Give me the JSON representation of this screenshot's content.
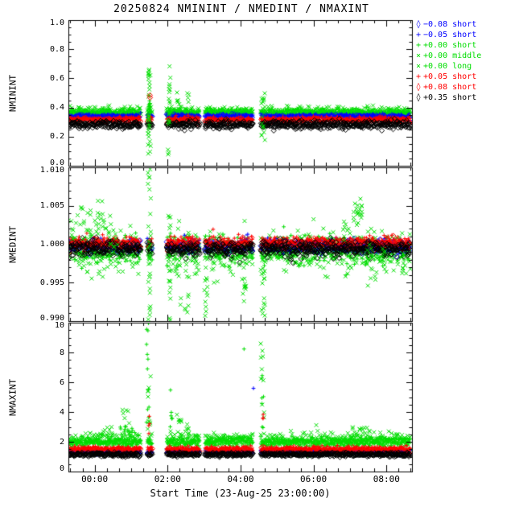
{
  "chart_data": {
    "type": "scatter",
    "title": "20250824 NMININT / NMEDINT / NMAXINT",
    "xlabel": "Start Time (23-Aug-25 23:00:00)",
    "x_range": [
      -0.72,
      8.7
    ],
    "x_ticks": [
      {
        "v": 0,
        "label": "00:00"
      },
      {
        "v": 2,
        "label": "02:00"
      },
      {
        "v": 4,
        "label": "04:00"
      },
      {
        "v": 6,
        "label": "06:00"
      },
      {
        "v": 8,
        "label": "08:00"
      }
    ],
    "x_minor_step": 0.33333,
    "panels": [
      {
        "ylabel": "NMININT",
        "y_range": [
          0.0,
          1.0
        ],
        "y_tick_vals": [
          0.0,
          0.2,
          0.4,
          0.6,
          0.8,
          1.0
        ],
        "y_ticks": [
          "0.0",
          "0.2",
          "0.4",
          "0.6",
          "0.8",
          "1.0"
        ],
        "y_minor": 0.05
      },
      {
        "ylabel": "NMEDINT",
        "y_range": [
          0.99,
          1.01
        ],
        "y_tick_vals": [
          0.99,
          0.995,
          1.0,
          1.005,
          1.01
        ],
        "y_ticks": [
          "0.990",
          "0.995",
          "1.000",
          "1.005",
          "1.010"
        ],
        "y_minor": 0.001
      },
      {
        "ylabel": "NMAXINT",
        "y_range": [
          0,
          10
        ],
        "y_tick_vals": [
          0,
          2,
          4,
          6,
          8,
          10
        ],
        "y_ticks": [
          "0",
          "2",
          "4",
          "6",
          "8",
          "10"
        ],
        "y_minor": 0.5
      }
    ],
    "segments": [
      [
        -0.72,
        1.27
      ],
      [
        1.44,
        1.58
      ],
      [
        1.97,
        2.88
      ],
      [
        3.02,
        4.34
      ],
      [
        4.55,
        8.66
      ]
    ],
    "series": [
      {
        "name": "m008-short",
        "label": "−0.08 short",
        "color": "#0000ff",
        "symbol": "diamond",
        "dt": 0.08,
        "bands": [
          [
            0.335,
            0.01
          ],
          [
            0.9996,
            0.0004
          ],
          [
            1.3,
            0.09
          ]
        ]
      },
      {
        "name": "m005-short",
        "label": "−0.05 short",
        "color": "#0000ff",
        "symbol": "plus",
        "dt": 0.015,
        "bands": [
          [
            0.342,
            0.007
          ],
          [
            0.9998,
            0.0004
          ],
          [
            1.35,
            0.07
          ]
        ]
      },
      {
        "name": "p000-short",
        "label": "+0.00 short",
        "color": "#00dd00",
        "symbol": "plus",
        "dt": 0.012,
        "bands": [
          [
            0.365,
            0.012
          ],
          [
            0.9993,
            0.0008
          ],
          [
            2.0,
            0.15
          ]
        ]
      },
      {
        "name": "p000-middle",
        "label": "+0.00 middle",
        "color": "#00dd00",
        "symbol": "cross",
        "dt": 0.02,
        "bands": [
          [
            0.372,
            0.016
          ],
          [
            0.999,
            0.0012
          ],
          [
            2.1,
            0.25
          ]
        ]
      },
      {
        "name": "p000-long",
        "label": "+0.00 long",
        "color": "#00dd00",
        "symbol": "cross",
        "dt": 0.05,
        "bands": [
          [
            0.372,
            0.02
          ],
          [
            0.9998,
            0.0012
          ],
          [
            2.15,
            0.3
          ]
        ]
      },
      {
        "name": "p005-short",
        "label": "+0.05 short",
        "color": "#ff0000",
        "symbol": "plus",
        "dt": 0.015,
        "bands": [
          [
            0.318,
            0.009
          ],
          [
            1.0002,
            0.0004
          ],
          [
            1.52,
            0.08
          ]
        ]
      },
      {
        "name": "p008-short",
        "label": "+0.08 short",
        "color": "#ff0000",
        "symbol": "diamond",
        "dt": 0.05,
        "bands": [
          [
            0.308,
            0.009
          ],
          [
            1.0,
            0.0004
          ],
          [
            1.45,
            0.1
          ]
        ]
      },
      {
        "name": "p035-short",
        "label": "+0.35 short",
        "color": "#000000",
        "symbol": "diamond",
        "dt": 0.012,
        "bands": [
          [
            0.282,
            0.013
          ],
          [
            0.9994,
            0.0005
          ],
          [
            1.15,
            0.06
          ]
        ]
      }
    ],
    "events": [
      [
        0,
        3,
        1.5,
        0.04,
        0.05,
        0.68,
        26
      ],
      [
        0,
        4,
        1.5,
        0.03,
        0.1,
        0.62,
        10
      ],
      [
        0,
        2,
        1.5,
        0.03,
        0.28,
        0.46,
        12
      ],
      [
        0,
        3,
        2.05,
        0.03,
        0.1,
        0.7,
        16
      ],
      [
        0,
        4,
        2.02,
        0.02,
        0.05,
        0.12,
        3
      ],
      [
        0,
        3,
        2.3,
        0.06,
        0.4,
        0.56,
        6
      ],
      [
        0,
        3,
        2.55,
        0.06,
        0.38,
        0.5,
        5
      ],
      [
        0,
        3,
        4.62,
        0.05,
        0.15,
        0.5,
        18
      ],
      [
        0,
        6,
        1.52,
        0.01,
        0.46,
        0.49,
        2
      ],
      [
        1,
        4,
        -0.55,
        0.1,
        1.0005,
        1.004,
        8
      ],
      [
        1,
        4,
        -0.25,
        0.15,
        1.0005,
        1.005,
        12
      ],
      [
        1,
        4,
        0.1,
        0.15,
        1.001,
        1.0057,
        14
      ],
      [
        1,
        4,
        0.35,
        0.1,
        1.0,
        1.004,
        10
      ],
      [
        1,
        4,
        0.6,
        0.1,
        0.999,
        1.002,
        6
      ],
      [
        1,
        3,
        0.0,
        0.5,
        0.996,
        0.999,
        10
      ],
      [
        1,
        3,
        1.5,
        0.04,
        0.99,
        1.0098,
        30
      ],
      [
        1,
        3,
        2.05,
        0.03,
        0.9895,
        0.999,
        14
      ],
      [
        1,
        3,
        2.05,
        0.03,
        1.001,
        1.004,
        5
      ],
      [
        1,
        3,
        2.3,
        0.08,
        0.992,
        0.998,
        9
      ],
      [
        1,
        3,
        2.55,
        0.08,
        0.991,
        0.997,
        9
      ],
      [
        1,
        3,
        2.8,
        0.05,
        0.994,
        0.998,
        5
      ],
      [
        1,
        3,
        3.05,
        0.04,
        0.9905,
        0.998,
        12
      ],
      [
        1,
        3,
        3.3,
        0.1,
        0.995,
        0.9985,
        6
      ],
      [
        1,
        3,
        4.1,
        0.06,
        0.9925,
        0.998,
        12
      ],
      [
        1,
        3,
        4.62,
        0.05,
        0.99,
        0.997,
        14
      ],
      [
        1,
        4,
        6.9,
        0.1,
        1.0,
        1.003,
        8
      ],
      [
        1,
        4,
        7.15,
        0.1,
        1.0015,
        1.0055,
        12
      ],
      [
        1,
        4,
        7.35,
        0.08,
        1.003,
        1.006,
        8
      ],
      [
        1,
        4,
        7.5,
        0.08,
        0.994,
        1.0,
        10
      ],
      [
        1,
        4,
        7.65,
        0.08,
        0.995,
        0.999,
        8
      ],
      [
        1,
        4,
        7.9,
        0.1,
        0.997,
        0.9995,
        6
      ],
      [
        1,
        3,
        8.45,
        0.1,
        0.996,
        0.999,
        6
      ],
      [
        2,
        2,
        1.45,
        0.05,
        3.0,
        10.0,
        12
      ],
      [
        2,
        3,
        1.5,
        0.05,
        2.5,
        6.5,
        10
      ],
      [
        2,
        3,
        0.85,
        0.1,
        3.0,
        4.3,
        6
      ],
      [
        2,
        2,
        0.85,
        0.25,
        2.3,
        3.2,
        18
      ],
      [
        2,
        2,
        2.1,
        0.03,
        3.0,
        5.5,
        6
      ],
      [
        2,
        3,
        2.35,
        0.1,
        3.0,
        4.6,
        6
      ],
      [
        2,
        3,
        2.6,
        0.1,
        2.8,
        3.6,
        4
      ],
      [
        2,
        2,
        4.1,
        0.01,
        8.2,
        8.4,
        1
      ],
      [
        2,
        3,
        4.6,
        0.05,
        3.0,
        8.6,
        10
      ],
      [
        2,
        2,
        4.6,
        0.04,
        2.5,
        7.0,
        7
      ],
      [
        2,
        1,
        4.35,
        0.01,
        5.5,
        5.7,
        1
      ],
      [
        2,
        5,
        1.5,
        0.03,
        2.0,
        4.0,
        4
      ],
      [
        2,
        5,
        4.62,
        0.03,
        2.0,
        4.0,
        3
      ],
      [
        2,
        4,
        7.3,
        0.25,
        2.4,
        3.2,
        8
      ],
      [
        2,
        3,
        7.3,
        0.2,
        2.3,
        3.0,
        6
      ],
      [
        2,
        3,
        0.4,
        0.15,
        2.5,
        3.2,
        5
      ]
    ],
    "legend_position": "right-top"
  }
}
